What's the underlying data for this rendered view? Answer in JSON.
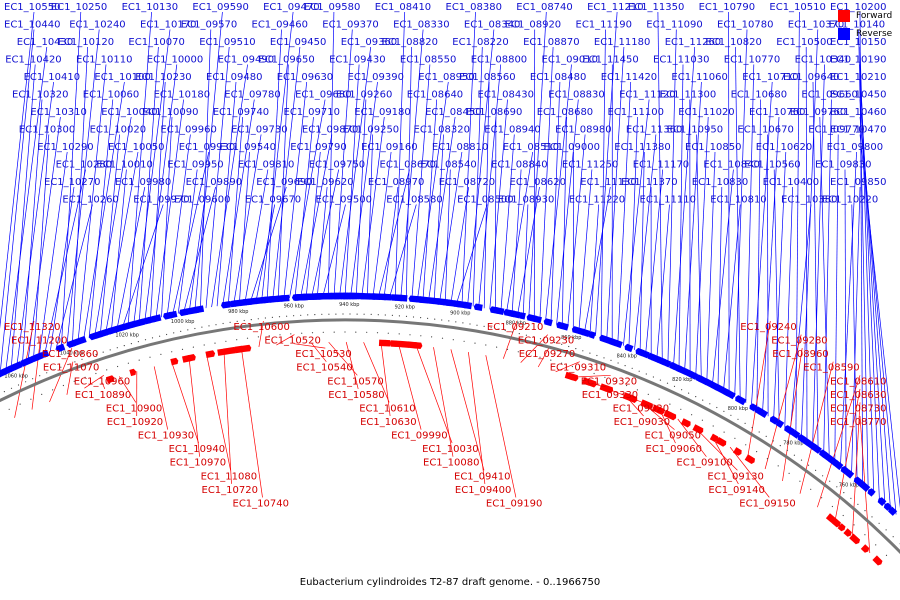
{
  "caption": "Eubacterium cylindroides T2-87 draft genome. - 0..1966750",
  "legend": [
    {
      "label": "Forward",
      "color": "#ff0000"
    },
    {
      "label": "Reverse",
      "color": "#0000ff"
    }
  ],
  "ruler_labels": [
    "1060 kbp",
    "1040 kbp",
    "1020 kbp",
    "1000 kbp",
    "980 kbp",
    "960 kbp",
    "940 kbp",
    "920 kbp",
    "900 kbp",
    "880 kbp",
    "860 kbp",
    "840 kbp",
    "820 kbp",
    "800 kbp",
    "780 kbp",
    "760 kbp"
  ],
  "reverse_genes": [
    "EC1_10550",
    "EC1_10440",
    "EC1_10430",
    "EC1_10420",
    "EC1_10410",
    "EC1_10320",
    "EC1_10310",
    "EC1_10300",
    "EC1_10290",
    "EC1_10280",
    "EC1_10270",
    "EC1_10260",
    "EC1_10250",
    "EC1_10240",
    "EC1_10120",
    "EC1_10110",
    "EC1_10100",
    "EC1_10060",
    "EC1_10040",
    "EC1_10020",
    "EC1_10050",
    "EC1_10010",
    "EC1_09980",
    "EC1_09970",
    "EC1_10130",
    "EC1_10170",
    "EC1_10070",
    "EC1_10000",
    "EC1_10230",
    "EC1_10180",
    "EC1_10090",
    "EC1_09960",
    "EC1_09930",
    "EC1_09950",
    "EC1_09890",
    "EC1_09600",
    "EC1_09590",
    "EC1_09570",
    "EC1_09510",
    "EC1_09490",
    "EC1_09480",
    "EC1_09780",
    "EC1_09740",
    "EC1_09730",
    "EC1_09540",
    "EC1_09810",
    "EC1_09690",
    "EC1_09670",
    "EC1_09470",
    "EC1_09460",
    "EC1_09450",
    "EC1_09650",
    "EC1_09630",
    "EC1_09680",
    "EC1_09710",
    "EC1_09870",
    "EC1_09790",
    "EC1_09750",
    "EC1_09620",
    "EC1_09500",
    "EC1_09580",
    "EC1_09370",
    "EC1_09360",
    "EC1_09430",
    "EC1_09390",
    "EC1_09260",
    "EC1_09180",
    "EC1_09250",
    "EC1_09160",
    "EC1_08670",
    "EC1_08970",
    "EC1_08580",
    "EC1_08410",
    "EC1_08330",
    "EC1_08820",
    "EC1_08550",
    "EC1_08950",
    "EC1_08640",
    "EC1_08450",
    "EC1_08320",
    "EC1_08810",
    "EC1_08540",
    "EC1_08720",
    "EC1_08500",
    "EC1_08380",
    "EC1_08340",
    "EC1_08220",
    "EC1_08800",
    "EC1_08560",
    "EC1_08430",
    "EC1_08690",
    "EC1_08940",
    "EC1_08510",
    "EC1_08840",
    "EC1_08620",
    "EC1_08930",
    "EC1_08740",
    "EC1_08920",
    "EC1_08870",
    "EC1_09010",
    "EC1_08480",
    "EC1_08830",
    "EC1_08680",
    "EC1_08980",
    "EC1_09000",
    "EC1_11250",
    "EC1_11130",
    "EC1_11220",
    "EC1_11210",
    "EC1_11190",
    "EC1_11180",
    "EC1_11450",
    "EC1_11420",
    "EC1_11120",
    "EC1_11100",
    "EC1_11360",
    "EC1_11380",
    "EC1_11170",
    "EC1_11370",
    "EC1_11110",
    "EC1_11350",
    "EC1_11090",
    "EC1_11260",
    "EC1_11030",
    "EC1_11060",
    "EC1_11300",
    "EC1_11020",
    "EC1_10950",
    "EC1_10850",
    "EC1_10840",
    "EC1_10830",
    "EC1_10810",
    "EC1_10790",
    "EC1_10780",
    "EC1_10820",
    "EC1_10770",
    "EC1_10710",
    "EC1_10680",
    "EC1_10760",
    "EC1_10670",
    "EC1_10620",
    "EC1_10560",
    "EC1_10400",
    "EC1_10380",
    "EC1_10510",
    "EC1_10370",
    "EC1_10500",
    "EC1_10340",
    "EC1_09640",
    "EC1_09660",
    "EC1_09760",
    "EC1_09770",
    "EC1_09800",
    "EC1_09830",
    "EC1_09850",
    "EC1_10220",
    "EC1_10200",
    "EC1_10140",
    "EC1_10150",
    "EC1_10190",
    "EC1_10210",
    "EC1_10450",
    "EC1_10460",
    "EC1_10470"
  ],
  "forward_genes": [
    "EC1_11320",
    "EC1_11200",
    "EC1_10860",
    "EC1_11070",
    "EC1_10960",
    "EC1_10890",
    "EC1_10900",
    "EC1_10920",
    "EC1_10930",
    "EC1_10940",
    "EC1_10970",
    "EC1_11080",
    "EC1_10720",
    "EC1_10740",
    "EC1_10600",
    "EC1_10520",
    "EC1_10530",
    "EC1_10540",
    "EC1_10570",
    "EC1_10580",
    "EC1_10610",
    "EC1_10630",
    "EC1_09990",
    "EC1_10030",
    "EC1_10080",
    "EC1_09410",
    "EC1_09400",
    "EC1_09190",
    "EC1_09210",
    "EC1_09230",
    "EC1_09270",
    "EC1_09310",
    "EC1_09320",
    "EC1_09330",
    "EC1_09020",
    "EC1_09030",
    "EC1_09050",
    "EC1_09060",
    "EC1_09100",
    "EC1_09130",
    "EC1_09140",
    "EC1_09150",
    "EC1_09240",
    "EC1_09280",
    "EC1_08960",
    "EC1_08590",
    "EC1_08610",
    "EC1_08630",
    "EC1_08730",
    "EC1_08770"
  ]
}
